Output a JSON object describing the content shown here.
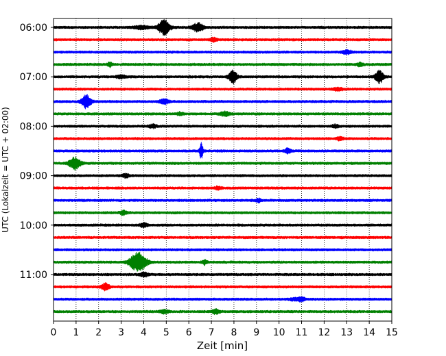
{
  "chart_data": {
    "type": "line",
    "title": "",
    "xlabel": "Zeit  [min]",
    "ylabel": "UTC (Lokalzeit = UTC + 02:00)",
    "xlim": [
      0,
      15
    ],
    "x_ticks": [
      0,
      1,
      2,
      3,
      4,
      5,
      6,
      7,
      8,
      9,
      10,
      11,
      12,
      13,
      14,
      15
    ],
    "x_grid": "dotted vertical lines at each minute",
    "y_tick_labels": [
      "06:00",
      "07:00",
      "08:00",
      "09:00",
      "10:00",
      "11:00"
    ],
    "trace_interval_minutes": 15,
    "trace_colors_cycle": [
      "#000000",
      "#ff0000",
      "#0000ff",
      "#008000"
    ],
    "traces": [
      {
        "start": "06:00",
        "color": "#000000",
        "events": [
          {
            "t": 4.9,
            "amp": 1.4,
            "dur": 0.5
          },
          {
            "t": 6.4,
            "amp": 0.8,
            "dur": 0.5
          },
          {
            "t": 3.9,
            "amp": 0.3,
            "dur": 0.6
          }
        ]
      },
      {
        "start": "06:15",
        "color": "#ff0000",
        "events": [
          {
            "t": 7.1,
            "amp": 0.35,
            "dur": 0.3
          }
        ]
      },
      {
        "start": "06:30",
        "color": "#0000ff",
        "events": [
          {
            "t": 13.0,
            "amp": 0.35,
            "dur": 0.4
          }
        ]
      },
      {
        "start": "06:45",
        "color": "#008000",
        "events": [
          {
            "t": 2.5,
            "amp": 0.4,
            "dur": 0.2
          },
          {
            "t": 13.6,
            "amp": 0.3,
            "dur": 0.3
          }
        ]
      },
      {
        "start": "07:00",
        "color": "#000000",
        "events": [
          {
            "t": 7.95,
            "amp": 1.2,
            "dur": 0.35
          },
          {
            "t": 14.45,
            "amp": 1.2,
            "dur": 0.35
          },
          {
            "t": 3.0,
            "amp": 0.25,
            "dur": 0.4
          }
        ]
      },
      {
        "start": "07:15",
        "color": "#ff0000",
        "events": [
          {
            "t": 12.6,
            "amp": 0.25,
            "dur": 0.4
          }
        ]
      },
      {
        "start": "07:30",
        "color": "#0000ff",
        "events": [
          {
            "t": 1.45,
            "amp": 1.3,
            "dur": 0.4
          },
          {
            "t": 4.9,
            "amp": 0.45,
            "dur": 0.4
          }
        ]
      },
      {
        "start": "07:45",
        "color": "#008000",
        "events": [
          {
            "t": 7.6,
            "amp": 0.4,
            "dur": 0.4
          },
          {
            "t": 5.6,
            "amp": 0.25,
            "dur": 0.3
          }
        ]
      },
      {
        "start": "08:00",
        "color": "#000000",
        "events": [
          {
            "t": 4.4,
            "amp": 0.3,
            "dur": 0.3
          },
          {
            "t": 12.5,
            "amp": 0.25,
            "dur": 0.3
          }
        ]
      },
      {
        "start": "08:15",
        "color": "#ff0000",
        "events": [
          {
            "t": 12.7,
            "amp": 0.3,
            "dur": 0.3
          }
        ]
      },
      {
        "start": "08:30",
        "color": "#0000ff",
        "events": [
          {
            "t": 6.55,
            "amp": 1.6,
            "dur": 0.15
          },
          {
            "t": 10.4,
            "amp": 0.45,
            "dur": 0.3
          }
        ]
      },
      {
        "start": "08:45",
        "color": "#008000",
        "events": [
          {
            "t": 0.95,
            "amp": 1.1,
            "dur": 0.5
          }
        ]
      },
      {
        "start": "09:00",
        "color": "#000000",
        "events": [
          {
            "t": 3.2,
            "amp": 0.3,
            "dur": 0.3
          }
        ]
      },
      {
        "start": "09:15",
        "color": "#ff0000",
        "events": [
          {
            "t": 7.3,
            "amp": 0.25,
            "dur": 0.3
          }
        ]
      },
      {
        "start": "09:30",
        "color": "#0000ff",
        "events": [
          {
            "t": 9.1,
            "amp": 0.35,
            "dur": 0.2
          }
        ]
      },
      {
        "start": "09:45",
        "color": "#008000",
        "events": [
          {
            "t": 3.1,
            "amp": 0.4,
            "dur": 0.3
          }
        ]
      },
      {
        "start": "10:00",
        "color": "#000000",
        "events": [
          {
            "t": 4.0,
            "amp": 0.4,
            "dur": 0.3
          }
        ]
      },
      {
        "start": "10:15",
        "color": "#ff0000",
        "events": []
      },
      {
        "start": "10:30",
        "color": "#0000ff",
        "events": []
      },
      {
        "start": "10:45",
        "color": "#008000",
        "events": [
          {
            "t": 3.75,
            "amp": 1.8,
            "dur": 0.7
          },
          {
            "t": 6.7,
            "amp": 0.45,
            "dur": 0.2
          }
        ]
      },
      {
        "start": "11:00",
        "color": "#000000",
        "events": [
          {
            "t": 4.0,
            "amp": 0.35,
            "dur": 0.4
          }
        ]
      },
      {
        "start": "11:15",
        "color": "#ff0000",
        "events": [
          {
            "t": 2.3,
            "amp": 0.6,
            "dur": 0.35
          }
        ]
      },
      {
        "start": "11:30",
        "color": "#0000ff",
        "events": [
          {
            "t": 11.0,
            "amp": 0.35,
            "dur": 0.3
          },
          {
            "t": 10.7,
            "amp": 0.2,
            "dur": 0.5
          }
        ]
      },
      {
        "start": "11:45",
        "color": "#008000",
        "events": [
          {
            "t": 7.2,
            "amp": 0.45,
            "dur": 0.3
          },
          {
            "t": 4.9,
            "amp": 0.3,
            "dur": 0.4
          }
        ]
      }
    ]
  }
}
